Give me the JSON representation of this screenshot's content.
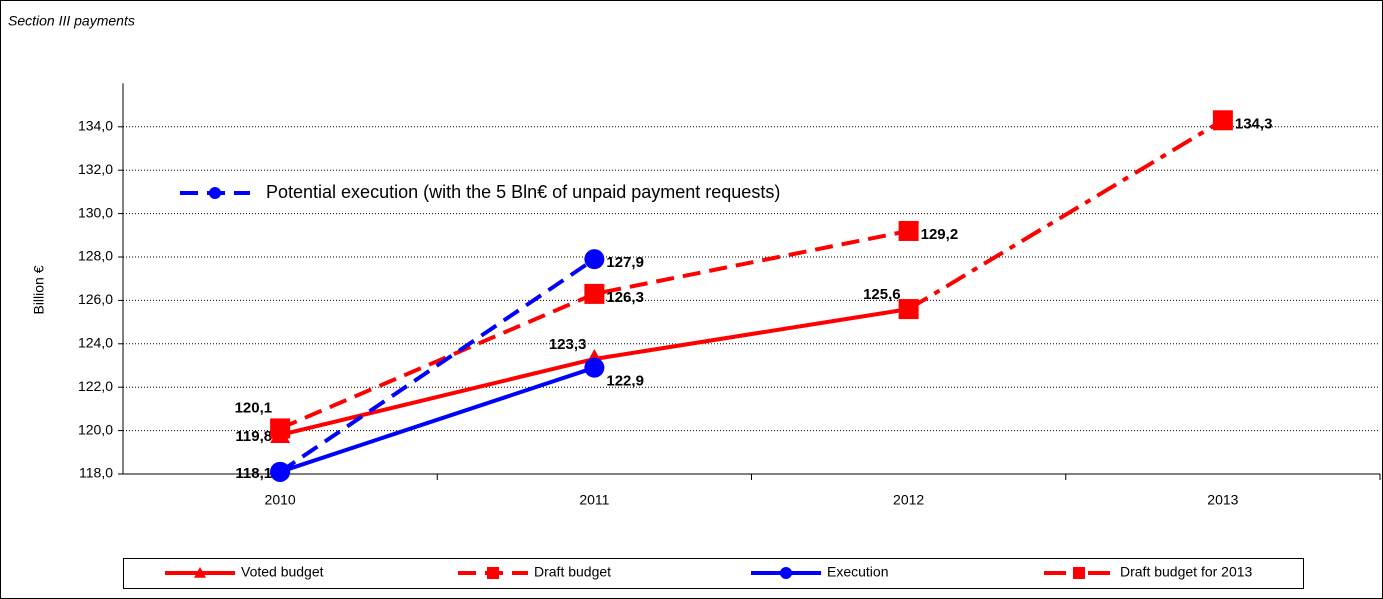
{
  "chart_data": {
    "type": "line",
    "title": "Section III payments",
    "y_label": "Billion €",
    "categories": [
      "2010",
      "2011",
      "2012",
      "2013"
    ],
    "ylim": [
      118,
      136
    ],
    "yticks": [
      {
        "value": 118,
        "label": "118,0"
      },
      {
        "value": 120,
        "label": "120,0"
      },
      {
        "value": 122,
        "label": "122,0"
      },
      {
        "value": 124,
        "label": "124,0"
      },
      {
        "value": 126,
        "label": "126,0"
      },
      {
        "value": 128,
        "label": "128,0"
      },
      {
        "value": 130,
        "label": "130,0"
      },
      {
        "value": 132,
        "label": "132,0"
      },
      {
        "value": 134,
        "label": "134,0"
      }
    ],
    "grid": true,
    "legend": "bottom",
    "series": [
      {
        "name": "Voted budget",
        "color": "#ff0000",
        "marker": "triangle",
        "dash": "solid",
        "values": [
          119.8,
          123.3,
          125.6,
          null
        ],
        "value_labels": [
          "119,8",
          "123,3",
          "125,6",
          null
        ]
      },
      {
        "name": "Draft budget",
        "color": "#ff0000",
        "marker": "square",
        "dash": "dash",
        "values": [
          120.1,
          126.3,
          129.2,
          null
        ],
        "value_labels": [
          "120,1",
          "126,3",
          "129,2",
          null
        ]
      },
      {
        "name": "Execution",
        "color": "#0000ff",
        "marker": "circle",
        "dash": "solid",
        "values": [
          118.1,
          122.9,
          null,
          null
        ],
        "value_labels": [
          "118,1",
          "122,9",
          null,
          null
        ]
      },
      {
        "name": "Draft budget for 2013",
        "color": "#ff0000",
        "marker": "square",
        "dash": "dashdot",
        "values": [
          null,
          null,
          125.6,
          134.3
        ],
        "value_labels": [
          null,
          null,
          null,
          "134,3"
        ]
      },
      {
        "name": "Potential execution (with the 5 Bln€ of unpaid payment requests)",
        "color": "#0000ff",
        "marker": "circle",
        "dash": "dash",
        "legend_inside": true,
        "values": [
          118.1,
          127.9,
          null,
          null
        ],
        "value_labels": [
          null,
          "127,9",
          null,
          null
        ]
      }
    ]
  }
}
